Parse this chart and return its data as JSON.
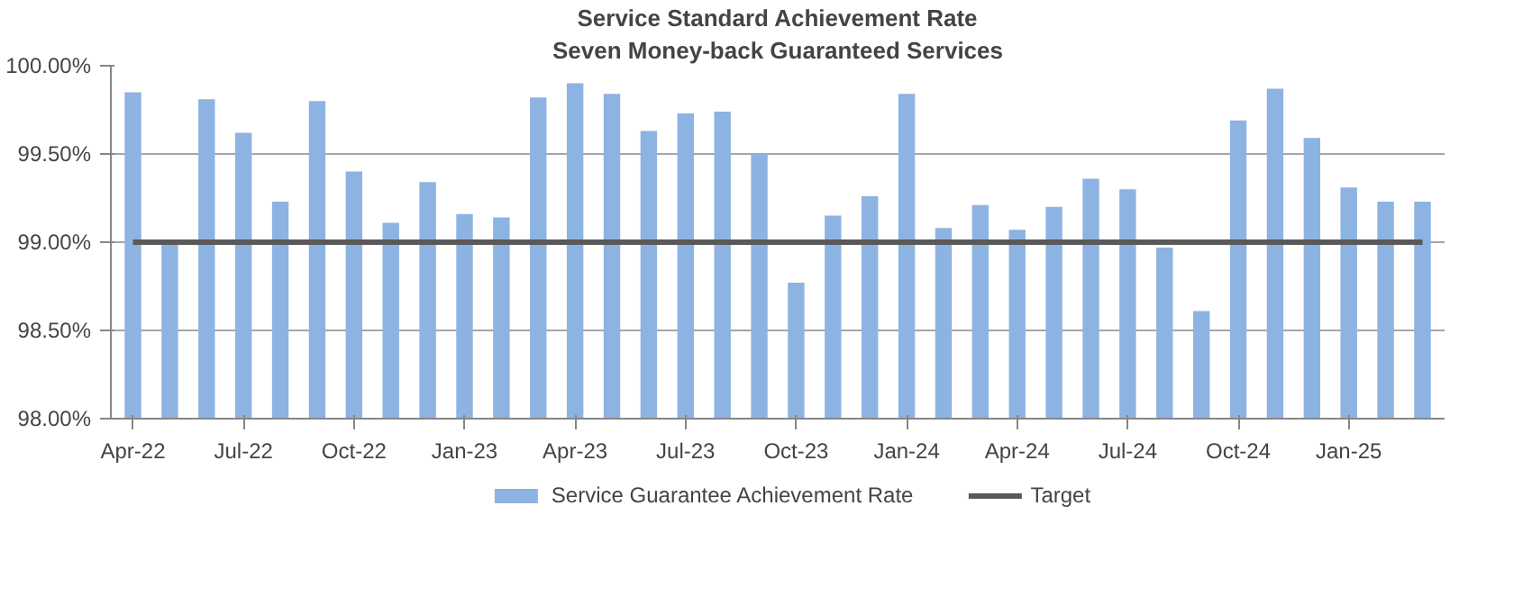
{
  "chart_data": {
    "type": "bar",
    "title": "Service Standard Achievement Rate",
    "subtitle": "Seven Money-back Guaranteed Services",
    "categories": [
      "Apr-22",
      null,
      null,
      "Jul-22",
      null,
      null,
      "Oct-22",
      null,
      null,
      "Jan-23",
      null,
      null,
      "Apr-23",
      null,
      null,
      "Jul-23",
      null,
      null,
      "Oct-23",
      null,
      null,
      "Jan-24",
      null,
      null,
      "Apr-24",
      null,
      null,
      "Jul-24",
      null,
      null,
      "Oct-24",
      null,
      null,
      "Jan-25",
      null,
      null
    ],
    "series": [
      {
        "name": "Service Guarantee Achievement Rate",
        "color": "#8db3e2",
        "values": [
          99.85,
          99.0,
          99.81,
          99.62,
          99.23,
          99.8,
          99.4,
          99.11,
          99.34,
          99.16,
          99.14,
          99.82,
          99.9,
          99.84,
          99.63,
          99.73,
          99.74,
          99.5,
          98.77,
          99.15,
          99.26,
          99.84,
          99.08,
          99.21,
          99.07,
          99.2,
          99.36,
          99.3,
          98.97,
          98.61,
          99.69,
          99.87,
          99.59,
          99.31,
          99.23,
          99.23
        ]
      },
      {
        "name": "Target",
        "type": "line",
        "color": "#595959",
        "values": [
          99,
          99,
          99,
          99,
          99,
          99,
          99,
          99,
          99,
          99,
          99,
          99,
          99,
          99,
          99,
          99,
          99,
          99,
          99,
          99,
          99,
          99,
          99,
          99,
          99,
          99,
          99,
          99,
          99,
          99,
          99,
          99,
          99,
          99,
          99,
          99
        ]
      }
    ],
    "ylim": [
      98,
      100
    ],
    "yticks": [
      {
        "value": 98,
        "label": "98.00%"
      },
      {
        "value": 98.5,
        "label": "98.50%"
      },
      {
        "value": 99,
        "label": "99.00%"
      },
      {
        "value": 99.5,
        "label": "99.50%"
      },
      {
        "value": 100,
        "label": "100.00%"
      }
    ],
    "grid": "y",
    "legend": "bottom",
    "line_style": "solid"
  }
}
